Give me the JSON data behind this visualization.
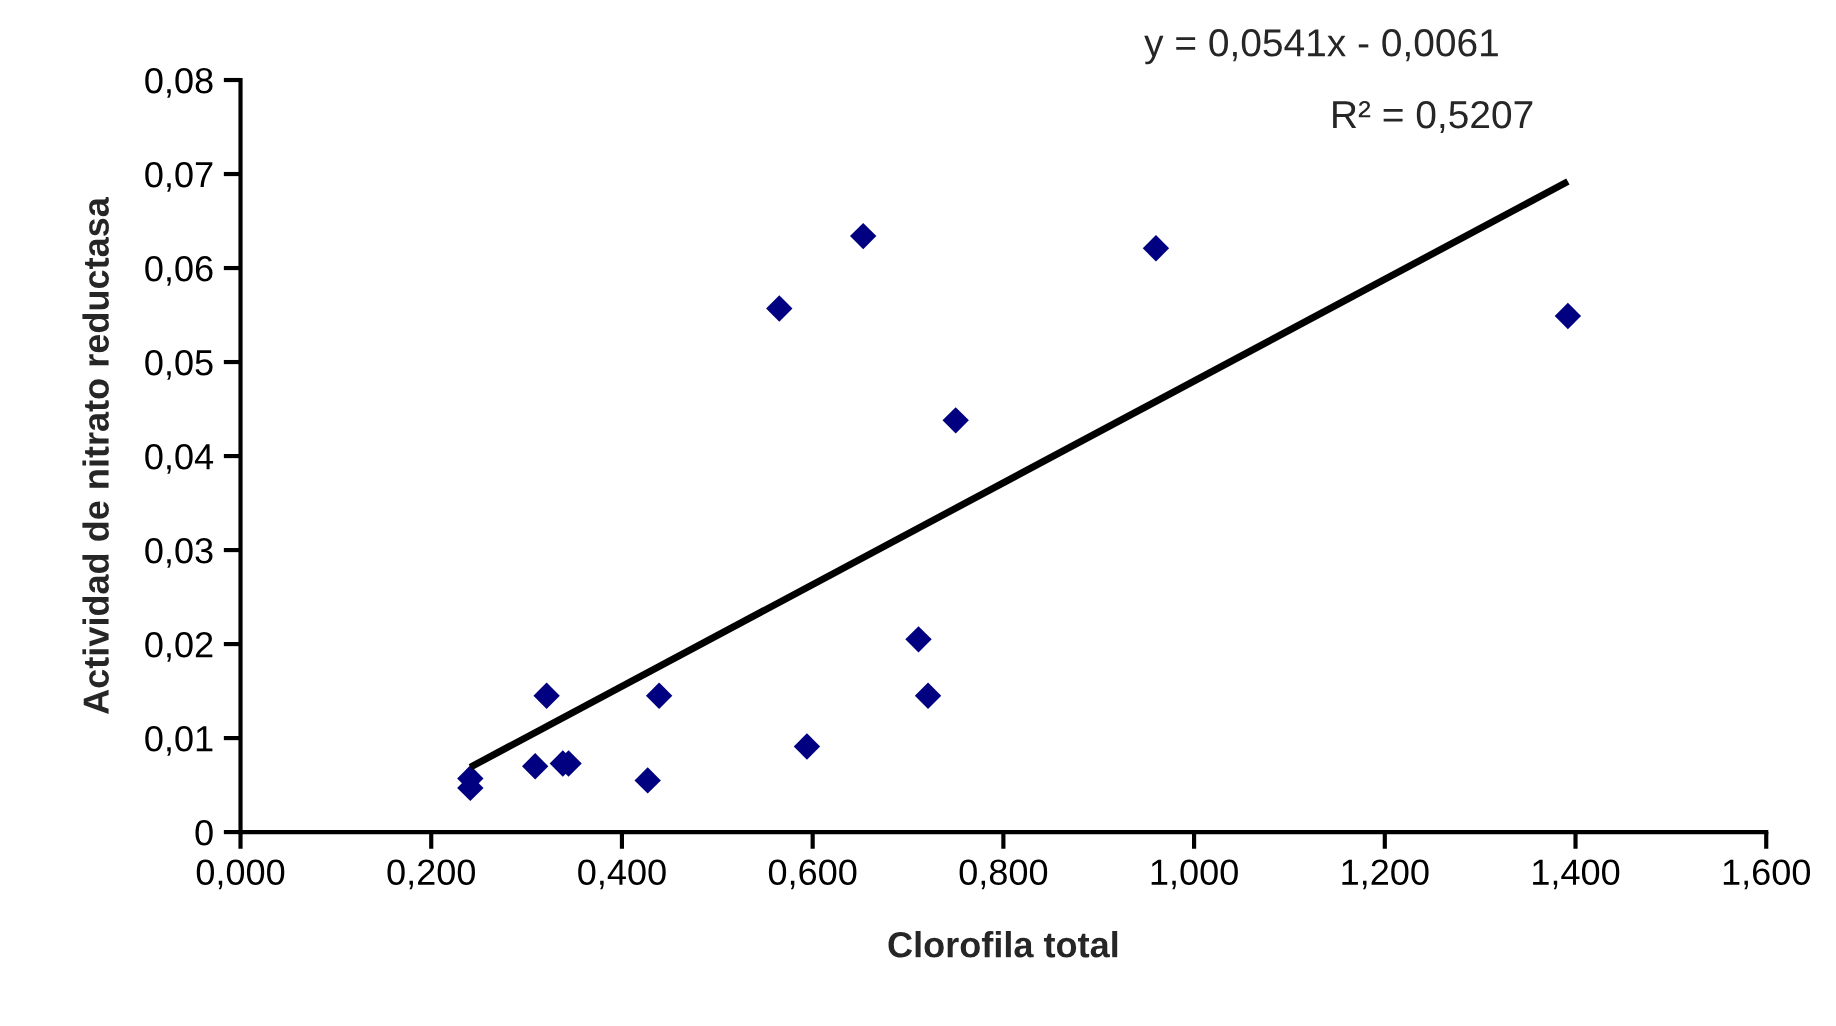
{
  "chart_data": {
    "type": "scatter",
    "xlabel": "Clorofila total",
    "ylabel": "Actividad de nitrato reductasa",
    "xlim": [
      0,
      1.6
    ],
    "ylim": [
      0,
      0.08
    ],
    "xticks": [
      {
        "value": 0,
        "label": "0,000"
      },
      {
        "value": 0.2,
        "label": "0,200"
      },
      {
        "value": 0.4,
        "label": "0,400"
      },
      {
        "value": 0.6,
        "label": "0,600"
      },
      {
        "value": 0.8,
        "label": "0,800"
      },
      {
        "value": 1.0,
        "label": "1,000"
      },
      {
        "value": 1.2,
        "label": "1,200"
      },
      {
        "value": 1.4,
        "label": "1,400"
      },
      {
        "value": 1.6,
        "label": "1,600"
      }
    ],
    "yticks": [
      0,
      {
        "value": 0.01,
        "label": "0,01"
      },
      {
        "value": 0.02,
        "label": "0,02"
      },
      {
        "value": 0.03,
        "label": "0,03"
      },
      {
        "value": 0.04,
        "label": "0,04"
      },
      {
        "value": 0.05,
        "label": "0,05"
      },
      {
        "value": 0.06,
        "label": "0,06"
      },
      {
        "value": 0.07,
        "label": "0,07"
      },
      {
        "value": 0.08,
        "label": "0,08"
      }
    ],
    "grid": false,
    "legend": false,
    "series": [
      {
        "marker": "diamond",
        "color": "#000080",
        "x": [
          0.241,
          0.241,
          0.309,
          0.321,
          0.338,
          0.344,
          0.427,
          0.439,
          0.565,
          0.594,
          0.653,
          0.711,
          0.721,
          0.75,
          0.96,
          1.392
        ],
        "values": [
          0.0057,
          0.0047,
          0.007,
          0.0145,
          0.0073,
          0.0073,
          0.0055,
          0.0145,
          0.0557,
          0.0091,
          0.0634,
          0.0205,
          0.0145,
          0.0438,
          0.0621,
          0.0549
        ]
      },
      {
        "type": "line",
        "marker": "none",
        "color": "#000000",
        "x": [
          0.241,
          1.392
        ],
        "values": [
          0.0069,
          0.0692
        ]
      }
    ],
    "annotations": [
      "y = 0,0541x - 0,0061",
      "R² = 0,5207"
    ]
  }
}
